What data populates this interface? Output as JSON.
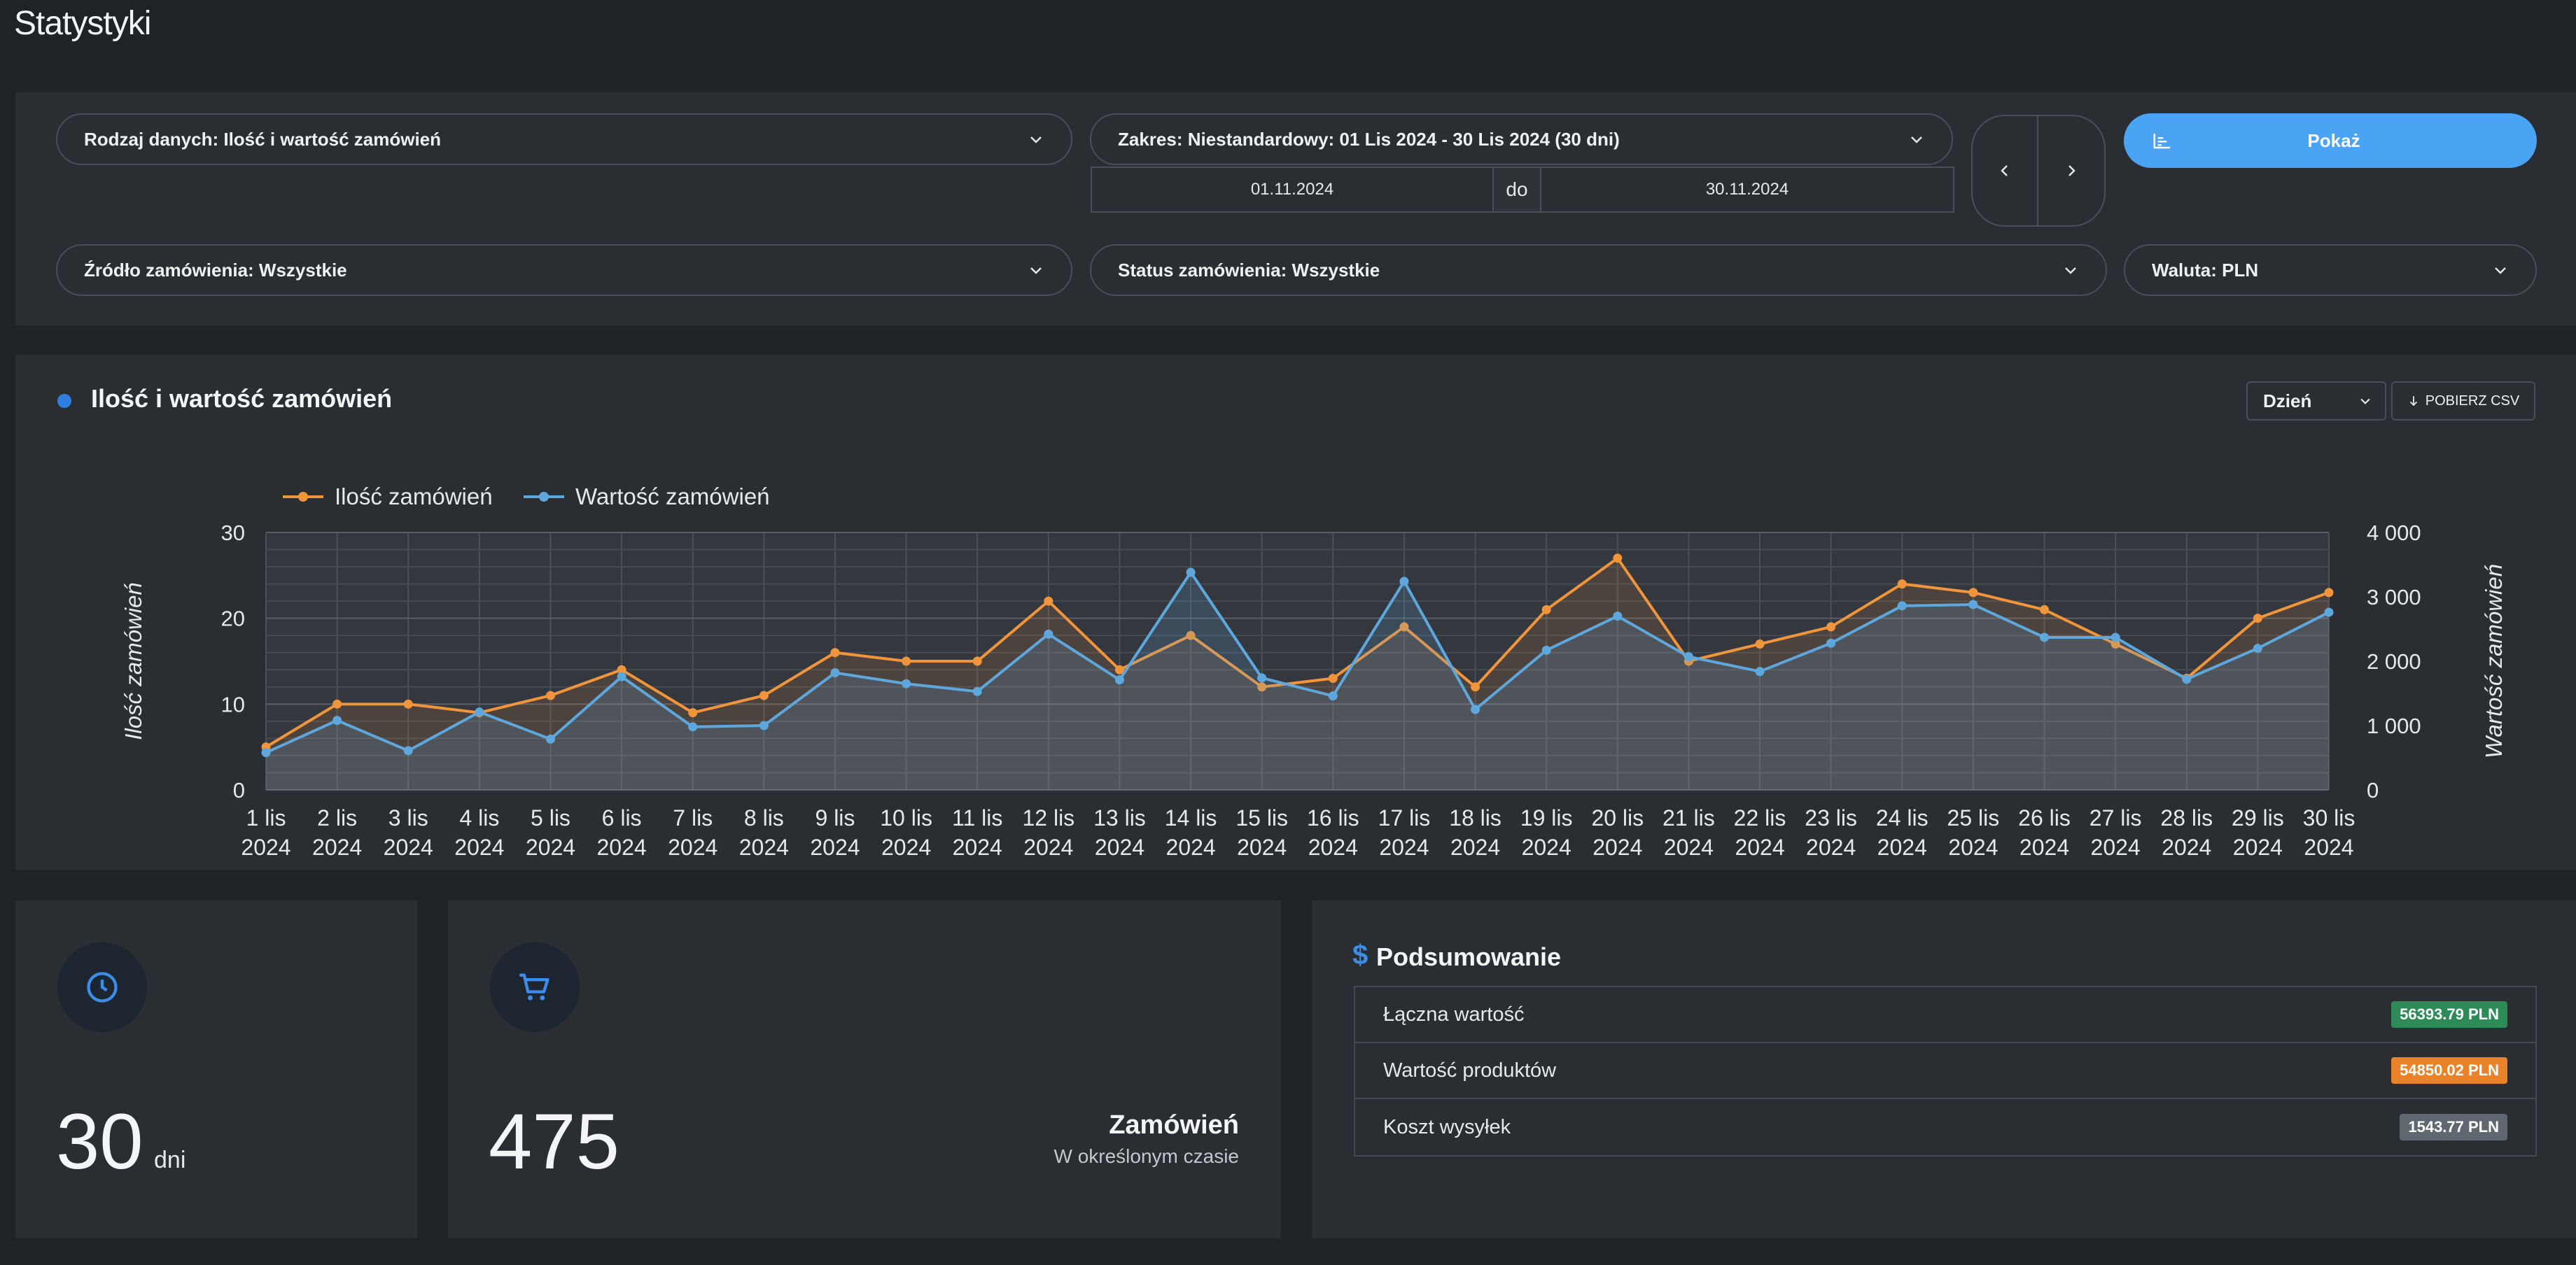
{
  "page": {
    "title": "Statystyki"
  },
  "filters": {
    "data_type": "Rodzaj danych: Ilość i wartość zamówień",
    "range": "Zakres: Niestandardowy: 01 Lis 2024 - 30 Lis 2024 (30 dni)",
    "date_from": "01.11.2024",
    "date_sep": "do",
    "date_to": "30.11.2024",
    "show_label": "Pokaż",
    "source": "Źródło zamówienia: Wszystkie",
    "status": "Status zamówienia: Wszystkie",
    "currency": "Waluta: PLN"
  },
  "chart_panel": {
    "title": "Ilość i wartość zamówień",
    "period": "Dzień",
    "csv_label": "POBIERZ CSV"
  },
  "chart_data": {
    "type": "line",
    "categories": [
      "1 lis 2024",
      "2 lis 2024",
      "3 lis 2024",
      "4 lis 2024",
      "5 lis 2024",
      "6 lis 2024",
      "7 lis 2024",
      "8 lis 2024",
      "9 lis 2024",
      "10 lis 2024",
      "11 lis 2024",
      "12 lis 2024",
      "13 lis 2024",
      "14 lis 2024",
      "15 lis 2024",
      "16 lis 2024",
      "17 lis 2024",
      "18 lis 2024",
      "19 lis 2024",
      "20 lis 2024",
      "21 lis 2024",
      "22 lis 2024",
      "23 lis 2024",
      "24 lis 2024",
      "25 lis 2024",
      "26 lis 2024",
      "27 lis 2024",
      "28 lis 2024",
      "29 lis 2024",
      "30 lis 2024"
    ],
    "category_lines": [
      [
        "1 lis",
        "2024"
      ],
      [
        "2 lis",
        "2024"
      ],
      [
        "3 lis",
        "2024"
      ],
      [
        "4 lis",
        "2024"
      ],
      [
        "5 lis",
        "2024"
      ],
      [
        "6 lis",
        "2024"
      ],
      [
        "7 lis",
        "2024"
      ],
      [
        "8 lis",
        "2024"
      ],
      [
        "9 lis",
        "2024"
      ],
      [
        "10 lis",
        "2024"
      ],
      [
        "11 lis",
        "2024"
      ],
      [
        "12 lis",
        "2024"
      ],
      [
        "13 lis",
        "2024"
      ],
      [
        "14 lis",
        "2024"
      ],
      [
        "15 lis",
        "2024"
      ],
      [
        "16 lis",
        "2024"
      ],
      [
        "17 lis",
        "2024"
      ],
      [
        "18 lis",
        "2024"
      ],
      [
        "19 lis",
        "2024"
      ],
      [
        "20 lis",
        "2024"
      ],
      [
        "21 lis",
        "2024"
      ],
      [
        "22 lis",
        "2024"
      ],
      [
        "23 lis",
        "2024"
      ],
      [
        "24 lis",
        "2024"
      ],
      [
        "25 lis",
        "2024"
      ],
      [
        "26 lis",
        "2024"
      ],
      [
        "27 lis",
        "2024"
      ],
      [
        "28 lis",
        "2024"
      ],
      [
        "29 lis",
        "2024"
      ],
      [
        "30 lis",
        "2024"
      ]
    ],
    "series": [
      {
        "name": "Ilość zamówień",
        "axis": "left",
        "color": "#f0953c",
        "values": [
          5,
          10,
          10,
          9,
          11,
          14,
          9,
          11,
          16,
          15,
          15,
          22,
          14,
          18,
          12,
          13,
          19,
          12,
          21,
          27,
          15,
          17,
          19,
          24,
          23,
          21,
          17,
          13,
          20,
          23
        ]
      },
      {
        "name": "Wartość zamówień",
        "axis": "right",
        "color": "#5ea7dc",
        "values": [
          580,
          1080,
          610,
          1210,
          790,
          1760,
          980,
          1000,
          1820,
          1650,
          1530,
          2420,
          1710,
          3380,
          1740,
          1460,
          3240,
          1250,
          2170,
          2700,
          2070,
          1840,
          2280,
          2860,
          2880,
          2370,
          2370,
          1720,
          2200,
          2760
        ]
      }
    ],
    "y_left": {
      "label": "Ilość zamówień",
      "min": 0,
      "max": 30,
      "ticks": [
        "0",
        "10",
        "20",
        "30"
      ]
    },
    "y_right": {
      "label": "Wartość zamówień",
      "min": 0,
      "max": 4000,
      "ticks": [
        "0",
        "1 000",
        "2 000",
        "3 000",
        "4 000"
      ]
    },
    "legend": "top-left",
    "grid": true
  },
  "stats": {
    "days_value": "30",
    "days_unit": "dni",
    "orders_value": "475",
    "orders_title": "Zamówień",
    "orders_sub": "W określonym czasie"
  },
  "summary": {
    "title": "Podsumowanie",
    "rows": [
      {
        "label": "Łączna wartość",
        "value": "56393.79 PLN",
        "color": "#2e8b57"
      },
      {
        "label": "Wartość produktów",
        "value": "54850.02 PLN",
        "color": "#e8832a"
      },
      {
        "label": "Koszt wysyłek",
        "value": "1543.77 PLN",
        "color": "#5f6771"
      }
    ]
  }
}
